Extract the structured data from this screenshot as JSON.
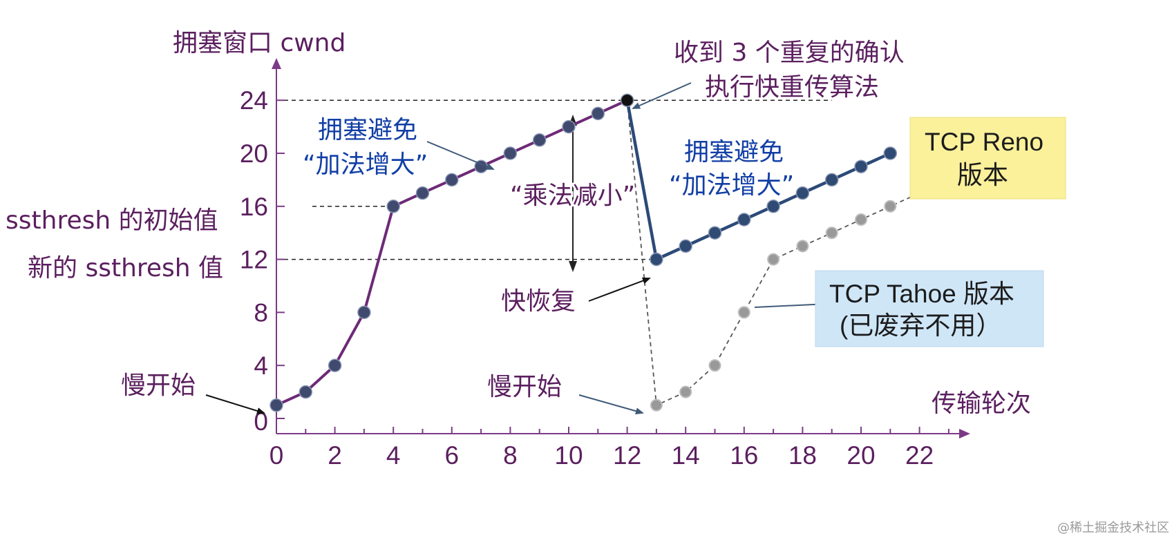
{
  "chart_data": {
    "type": "line",
    "ylabel": "拥塞窗口 cwnd",
    "xlabel": "传输轮次",
    "x_ticks": [
      0,
      2,
      4,
      6,
      8,
      10,
      12,
      14,
      16,
      18,
      20,
      22
    ],
    "y_ticks": [
      0,
      4,
      8,
      12,
      16,
      20,
      24
    ],
    "xlim": [
      0,
      23.5
    ],
    "ylim": [
      0,
      27
    ],
    "series": [
      {
        "name": "TCP Reno 版本",
        "style": "solid",
        "color_first": "#6d2a77",
        "color_second": "#2c4a78",
        "points": [
          [
            0,
            1
          ],
          [
            1,
            2
          ],
          [
            2,
            4
          ],
          [
            3,
            8
          ],
          [
            4,
            16
          ],
          [
            5,
            17
          ],
          [
            6,
            18
          ],
          [
            7,
            19
          ],
          [
            8,
            20
          ],
          [
            9,
            21
          ],
          [
            10,
            22
          ],
          [
            11,
            23
          ],
          [
            12,
            24
          ],
          [
            13,
            12
          ],
          [
            14,
            13
          ],
          [
            15,
            14
          ],
          [
            16,
            15
          ],
          [
            17,
            16
          ],
          [
            18,
            17
          ],
          [
            19,
            18
          ],
          [
            20,
            19
          ],
          [
            21,
            20
          ]
        ]
      },
      {
        "name": "TCP Tahoe 版本",
        "style": "dashed",
        "color": "#8c8c8c",
        "points": [
          [
            12,
            24
          ],
          [
            13,
            1
          ],
          [
            14,
            2
          ],
          [
            15,
            4
          ],
          [
            16,
            8
          ],
          [
            17,
            12
          ],
          [
            18,
            13
          ],
          [
            19,
            14
          ],
          [
            20,
            15
          ],
          [
            21,
            16
          ],
          [
            22,
            17
          ]
        ]
      }
    ],
    "ref_lines": [
      {
        "y": 24,
        "x_to": 19
      },
      {
        "y": 16,
        "x_from": -3,
        "x_to": 4
      },
      {
        "y": 12,
        "x_to": 13
      }
    ],
    "annotations": {
      "slow_start_1": "慢开始",
      "slow_start_2": "慢开始",
      "ssthresh_initial": "ssthresh 的初始值",
      "ssthresh_new": "新的 ssthresh 值",
      "ca1_line1": "拥塞避免",
      "ca1_line2": "“加法增大”",
      "ca2_line1": "拥塞避免",
      "ca2_line2": "“加法增大”",
      "multiplicative": "“乘法减小”",
      "dup_ack_line1": "收到 3 个重复的确认",
      "dup_ack_line2": "执行快重传算法",
      "fast_recovery": "快恢复",
      "reno_line1": "TCP Reno",
      "reno_line2": "版本",
      "tahoe_line1": "TCP Tahoe 版本",
      "tahoe_line2": "(已废弃不用）",
      "watermark": "@稀土掘金技术社区"
    },
    "colors": {
      "axis": "#7b3a86",
      "label": "#5b1f5f",
      "blue_label": "#123fa6",
      "reno_box": "#fbf19b",
      "tahoe_box": "#cfe6f7"
    }
  }
}
